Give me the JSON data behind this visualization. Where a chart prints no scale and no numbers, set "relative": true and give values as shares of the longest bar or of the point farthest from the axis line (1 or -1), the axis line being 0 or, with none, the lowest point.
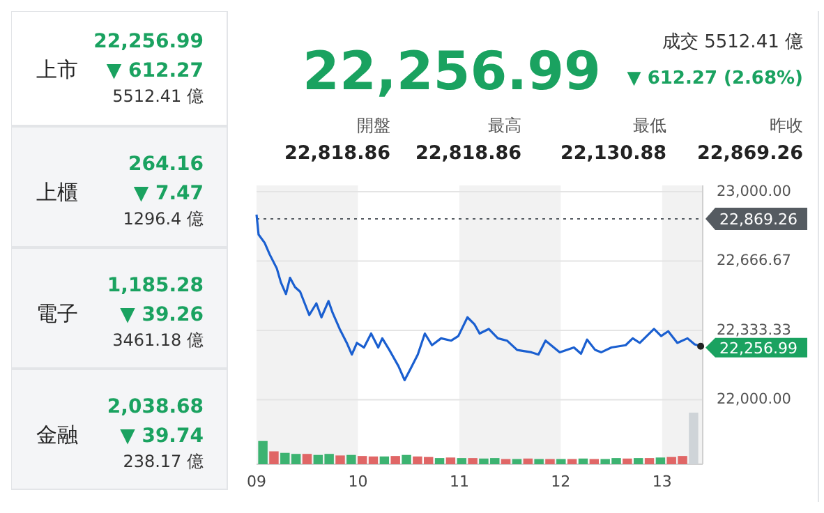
{
  "chart_data": [
    {
      "type": "other",
      "annotations": [
        "上市",
        "22,256.99",
        "▼ 612.27",
        "5512.41 億",
        "上櫃",
        "264.16",
        "▼ 7.47",
        "1296.4 億",
        "電子",
        "1,185.28",
        "▼ 39.26",
        "3461.18 億",
        "金融",
        "2,038.68",
        "▼ 39.74",
        "238.17 億"
      ]
    },
    {
      "type": "other",
      "title": "22,256.99",
      "annotations": [
        "成交 5512.41 億",
        "▼ 612.27 (2.68%)",
        "開盤",
        "22,818.86",
        "最高",
        "22,818.86",
        "最低",
        "22,130.88",
        "昨收",
        "22,869.26"
      ]
    },
    {
      "type": "line",
      "xlim": [
        9,
        13.4
      ],
      "ylim": [
        21690,
        23030
      ],
      "xticks": [
        {
          "value": 9,
          "label": "09"
        },
        {
          "value": 10,
          "label": "10"
        },
        {
          "value": 11,
          "label": "11"
        },
        {
          "value": 12,
          "label": "12"
        },
        {
          "value": 13,
          "label": "13"
        }
      ],
      "yticks": [
        {
          "value": 22000,
          "label": "22,000.00"
        },
        {
          "value": 22333.33,
          "label": "22,333.33"
        },
        {
          "value": 22666.67,
          "label": "22,666.67"
        },
        {
          "value": 23000,
          "label": "23,000.00"
        }
      ],
      "grid": "y",
      "marker": "none",
      "line_style": "solid",
      "ref_lines": [
        {
          "axis": "y",
          "value": 22869.26,
          "label": "22,869.26",
          "color": "#555b61",
          "line_style": "dotted"
        }
      ],
      "bands": [
        {
          "axis": "x",
          "from": 9,
          "to": 10,
          "color": "#f2f2f2"
        },
        {
          "axis": "x",
          "from": 11,
          "to": 12,
          "color": "#f2f2f2"
        },
        {
          "axis": "x",
          "from": 13,
          "to": 13.4,
          "color": "#f2f2f2"
        }
      ],
      "annotations": [
        {
          "text": "22,256.99",
          "x": 13.38,
          "y": 22257
        }
      ],
      "series": [
        {
          "color": "#1a5fd0",
          "x": [
            9,
            9.02,
            9.08,
            9.13,
            9.2,
            9.24,
            9.29,
            9.33,
            9.38,
            9.43,
            9.52,
            9.59,
            9.64,
            9.71,
            9.75,
            9.82,
            9.89,
            9.94,
            9.99,
            10.06,
            10.13,
            10.2,
            10.24,
            10.31,
            10.4,
            10.46,
            10.52,
            10.59,
            10.66,
            10.73,
            10.82,
            10.92,
            10.99,
            11.08,
            11.15,
            11.2,
            11.29,
            11.38,
            11.47,
            11.57,
            11.71,
            11.78,
            11.85,
            11.99,
            12.13,
            12.2,
            12.26,
            12.34,
            12.4,
            12.5,
            12.64,
            12.71,
            12.78,
            12.92,
            12.99,
            13.06,
            13.15,
            13.25,
            13.32,
            13.38
          ],
          "values": [
            22890,
            22794,
            22754,
            22698,
            22631,
            22564,
            22508,
            22586,
            22541,
            22519,
            22407,
            22463,
            22396,
            22474,
            22418,
            22340,
            22273,
            22217,
            22273,
            22251,
            22318,
            22251,
            22295,
            22239,
            22161,
            22094,
            22150,
            22217,
            22318,
            22262,
            22295,
            22284,
            22306,
            22396,
            22362,
            22318,
            22340,
            22295,
            22284,
            22239,
            22228,
            22217,
            22284,
            22228,
            22251,
            22221,
            22289,
            22239,
            22228,
            22251,
            22262,
            22295,
            22273,
            22340,
            22306,
            22329,
            22273,
            22295,
            22266,
            22257
          ]
        }
      ]
    },
    {
      "type": "bar",
      "relative": true,
      "categories": [
        null,
        null,
        null,
        null,
        null,
        null,
        null,
        null,
        null,
        null,
        null,
        null,
        null,
        null,
        null,
        null,
        null,
        null,
        null,
        null,
        null,
        null,
        null,
        null,
        null,
        null,
        null,
        null,
        null,
        null,
        null,
        null,
        null,
        null,
        null,
        null,
        null,
        null,
        null,
        null
      ],
      "values": [
        0.45,
        0.25,
        0.22,
        0.2,
        0.2,
        0.18,
        0.2,
        0.17,
        0.18,
        0.16,
        0.15,
        0.15,
        0.16,
        0.18,
        0.15,
        0.14,
        0.12,
        0.13,
        0.12,
        0.12,
        0.11,
        0.12,
        0.1,
        0.1,
        0.11,
        0.1,
        0.1,
        0.1,
        0.1,
        0.11,
        0.1,
        0.1,
        0.12,
        0.11,
        0.12,
        0.12,
        0.13,
        0.14,
        0.16,
        1
      ],
      "colors": [
        "#3cb371",
        "#e06666",
        "#3cb371",
        "#3cb371",
        "#e06666",
        "#3cb371",
        "#3cb371",
        "#e06666",
        "#3cb371",
        "#e06666",
        "#e06666",
        "#3cb371",
        "#e06666",
        "#3cb371",
        "#e06666",
        "#e06666",
        "#3cb371",
        "#e06666",
        "#3cb371",
        "#e06666",
        "#3cb371",
        "#3cb371",
        "#e06666",
        "#3cb371",
        "#e06666",
        "#3cb371",
        "#e06666",
        "#3cb371",
        "#e06666",
        "#3cb371",
        "#e06666",
        "#3cb371",
        "#3cb371",
        "#e06666",
        "#3cb371",
        "#e06666",
        "#3cb371",
        "#e06666",
        "#e06666",
        "#cfd4d8"
      ]
    }
  ]
}
